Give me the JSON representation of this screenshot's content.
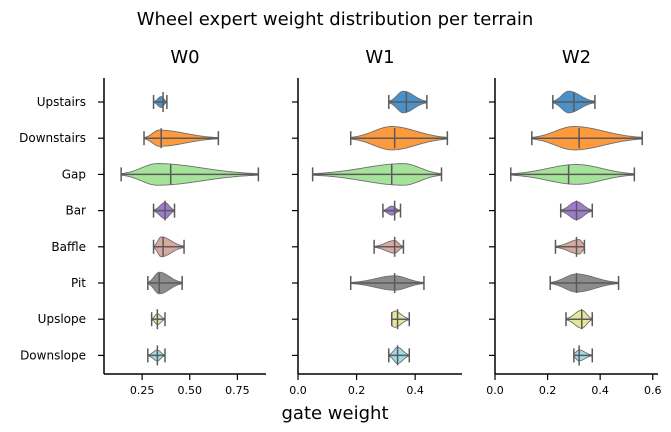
{
  "chart_data": {
    "type": "violin",
    "title": "Wheel expert weight distribution per terrain",
    "xlabel": "gate weight",
    "categories": [
      "Upstairs",
      "Downstairs",
      "Gap",
      "Bar",
      "Baffle",
      "Pit",
      "Upslope",
      "Downslope"
    ],
    "colors": [
      "#4a90c9",
      "#ff9a3c",
      "#a6e39a",
      "#9e7ad1",
      "#d9a9a0",
      "#8c8c8c",
      "#e6e69a",
      "#9fdde6"
    ],
    "panels": [
      {
        "title": "W0",
        "xlim": [
          0.05,
          0.9
        ],
        "ticks": [
          0.25,
          0.5,
          0.75
        ],
        "tick_labels": [
          "0.25",
          "0.50",
          "0.75"
        ],
        "series": [
          {
            "min": 0.31,
            "max": 0.38,
            "median": 0.36,
            "q1": 0.33,
            "q3": 0.37,
            "peak": 0.35,
            "halfwidth": 0.3
          },
          {
            "min": 0.26,
            "max": 0.65,
            "median": 0.35,
            "q1": 0.31,
            "q3": 0.38,
            "peak": 0.34,
            "halfwidth": 0.45
          },
          {
            "min": 0.14,
            "max": 0.86,
            "median": 0.4,
            "q1": 0.3,
            "q3": 0.46,
            "peak": 0.33,
            "halfwidth": 0.6
          },
          {
            "min": 0.31,
            "max": 0.42,
            "median": 0.37,
            "q1": 0.34,
            "q3": 0.4,
            "peak": 0.37,
            "halfwidth": 0.45
          },
          {
            "min": 0.31,
            "max": 0.47,
            "median": 0.36,
            "q1": 0.33,
            "q3": 0.42,
            "peak": 0.35,
            "halfwidth": 0.55
          },
          {
            "min": 0.28,
            "max": 0.46,
            "median": 0.34,
            "q1": 0.3,
            "q3": 0.4,
            "peak": 0.34,
            "halfwidth": 0.6
          },
          {
            "min": 0.3,
            "max": 0.37,
            "median": 0.33,
            "q1": 0.31,
            "q3": 0.35,
            "peak": 0.33,
            "halfwidth": 0.3
          },
          {
            "min": 0.28,
            "max": 0.37,
            "median": 0.33,
            "q1": 0.31,
            "q3": 0.35,
            "peak": 0.33,
            "halfwidth": 0.3
          }
        ]
      },
      {
        "title": "W1",
        "xlim": [
          0.0,
          0.56
        ],
        "ticks": [
          0.0,
          0.2,
          0.4
        ],
        "tick_labels": [
          "0.0",
          "0.2",
          "0.4"
        ],
        "series": [
          {
            "min": 0.31,
            "max": 0.44,
            "median": 0.37,
            "q1": 0.33,
            "q3": 0.41,
            "peak": 0.36,
            "halfwidth": 0.6
          },
          {
            "min": 0.18,
            "max": 0.51,
            "median": 0.33,
            "q1": 0.27,
            "q3": 0.41,
            "peak": 0.32,
            "halfwidth": 0.65
          },
          {
            "min": 0.05,
            "max": 0.49,
            "median": 0.32,
            "q1": 0.24,
            "q3": 0.38,
            "peak": 0.36,
            "halfwidth": 0.6
          },
          {
            "min": 0.29,
            "max": 0.35,
            "median": 0.33,
            "q1": 0.31,
            "q3": 0.34,
            "peak": 0.32,
            "halfwidth": 0.25
          },
          {
            "min": 0.26,
            "max": 0.36,
            "median": 0.33,
            "q1": 0.31,
            "q3": 0.34,
            "peak": 0.33,
            "halfwidth": 0.35
          },
          {
            "min": 0.18,
            "max": 0.43,
            "median": 0.33,
            "q1": 0.3,
            "q3": 0.36,
            "peak": 0.33,
            "halfwidth": 0.4
          },
          {
            "min": 0.32,
            "max": 0.38,
            "median": 0.34,
            "q1": 0.32,
            "q3": 0.36,
            "peak": 0.33,
            "halfwidth": 0.45
          },
          {
            "min": 0.31,
            "max": 0.38,
            "median": 0.34,
            "q1": 0.32,
            "q3": 0.36,
            "peak": 0.34,
            "halfwidth": 0.45
          }
        ]
      },
      {
        "title": "W2",
        "xlim": [
          0.0,
          0.62
        ],
        "ticks": [
          0.0,
          0.2,
          0.4,
          0.6
        ],
        "tick_labels": [
          "0.0",
          "0.2",
          "0.4",
          "0.6"
        ],
        "series": [
          {
            "min": 0.22,
            "max": 0.38,
            "median": 0.3,
            "q1": 0.25,
            "q3": 0.35,
            "peak": 0.28,
            "halfwidth": 0.6
          },
          {
            "min": 0.14,
            "max": 0.56,
            "median": 0.32,
            "q1": 0.26,
            "q3": 0.4,
            "peak": 0.3,
            "halfwidth": 0.65
          },
          {
            "min": 0.06,
            "max": 0.53,
            "median": 0.28,
            "q1": 0.2,
            "q3": 0.34,
            "peak": 0.31,
            "halfwidth": 0.55
          },
          {
            "min": 0.25,
            "max": 0.37,
            "median": 0.31,
            "q1": 0.28,
            "q3": 0.34,
            "peak": 0.31,
            "halfwidth": 0.5
          },
          {
            "min": 0.23,
            "max": 0.34,
            "median": 0.31,
            "q1": 0.27,
            "q3": 0.33,
            "peak": 0.32,
            "halfwidth": 0.4
          },
          {
            "min": 0.21,
            "max": 0.47,
            "median": 0.31,
            "q1": 0.27,
            "q3": 0.36,
            "peak": 0.31,
            "halfwidth": 0.5
          },
          {
            "min": 0.27,
            "max": 0.37,
            "median": 0.33,
            "q1": 0.29,
            "q3": 0.36,
            "peak": 0.33,
            "halfwidth": 0.5
          },
          {
            "min": 0.3,
            "max": 0.37,
            "median": 0.32,
            "q1": 0.31,
            "q3": 0.34,
            "peak": 0.32,
            "halfwidth": 0.3
          }
        ]
      }
    ]
  }
}
